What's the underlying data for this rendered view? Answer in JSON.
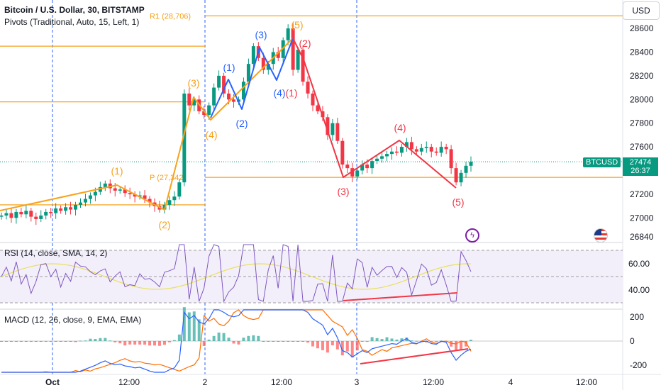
{
  "header": {
    "symbol_title": "Bitcoin / U.S. Dollar, 30, BITSTAMP",
    "pivots_indicator": "Pivots (Traditional, Auto, 15, Left, 1)",
    "currency_button": "USD"
  },
  "pivot_levels": [
    {
      "label": "R1 (28,706)",
      "value": 28706,
      "visible": true
    },
    {
      "label": "",
      "value": 28450,
      "visible": false
    },
    {
      "label": "",
      "value": 27980,
      "visible": false
    },
    {
      "label": "P (27,342)",
      "value": 27342,
      "visible": true
    },
    {
      "label": "",
      "value": 27110,
      "visible": false
    }
  ],
  "price_axis": {
    "ticks": [
      "28600",
      "28400",
      "28200",
      "28000",
      "27800",
      "27600",
      "27400",
      "27200",
      "27000",
      "26840"
    ]
  },
  "current_price": {
    "symbol": "BTCUSD",
    "value": "27474",
    "countdown": "26:37"
  },
  "time_axis": {
    "labels": [
      "Oct",
      "12:00",
      "2",
      "12:00",
      "3",
      "12:00",
      "4",
      "12:00"
    ]
  },
  "wave_labels": {
    "orange": [
      "(1)",
      "(2)",
      "(3)",
      "(4)",
      "(5)"
    ],
    "blue": [
      "(1)",
      "(2)",
      "(3)",
      "(4)"
    ],
    "red": [
      "(1)",
      "(2)",
      "(3)",
      "(4)",
      "(5)"
    ]
  },
  "rsi": {
    "title": "RSI (14, close, SMA, 14, 2)",
    "ticks": [
      "60.00",
      "40.00"
    ]
  },
  "macd": {
    "title": "MACD (12, 26, close, 9, EMA, EMA)",
    "ticks": [
      "200",
      "0",
      "-200"
    ]
  },
  "icons": [
    "flash-event-icon",
    "us-flag-icon"
  ],
  "colors": {
    "up": "#089981",
    "down": "#f23645",
    "pivot": "#f7a21b",
    "wave_orange": "#f7a21b",
    "wave_blue": "#2962ff",
    "wave_red": "#f23645",
    "rsi": "#7e57c2",
    "rsi_ma": "#e8e05a",
    "macd": "#2962ff",
    "signal": "#ff6d00"
  },
  "chart_data": {
    "type": "candlestick",
    "y_range": [
      26840,
      28750
    ],
    "closes": [
      27020,
      27040,
      27000,
      27050,
      27030,
      27060,
      27010,
      26990,
      27020,
      27050,
      27040,
      27080,
      27060,
      27090,
      27070,
      27110,
      27130,
      27160,
      27190,
      27220,
      27260,
      27290,
      27250,
      27230,
      27240,
      27210,
      27200,
      27180,
      27190,
      27160,
      27130,
      27100,
      27070,
      27110,
      27150,
      27180,
      27300,
      28050,
      27950,
      28000,
      27900,
      27870,
      27950,
      28100,
      28200,
      28050,
      28000,
      27980,
      28000,
      28150,
      28300,
      28450,
      28350,
      28250,
      28300,
      28400,
      28350,
      28500,
      28600,
      28250,
      28420,
      28150,
      28050,
      27950,
      27900,
      27850,
      27700,
      27800,
      27650,
      27450,
      27420,
      27350,
      27400,
      27450,
      27420,
      27480,
      27500,
      27520,
      27540,
      27560,
      27550,
      27600,
      27640,
      27580,
      27560,
      27590,
      27600,
      27560,
      27550,
      27600,
      27580,
      27420,
      27300,
      27380,
      27440,
      27474
    ]
  }
}
